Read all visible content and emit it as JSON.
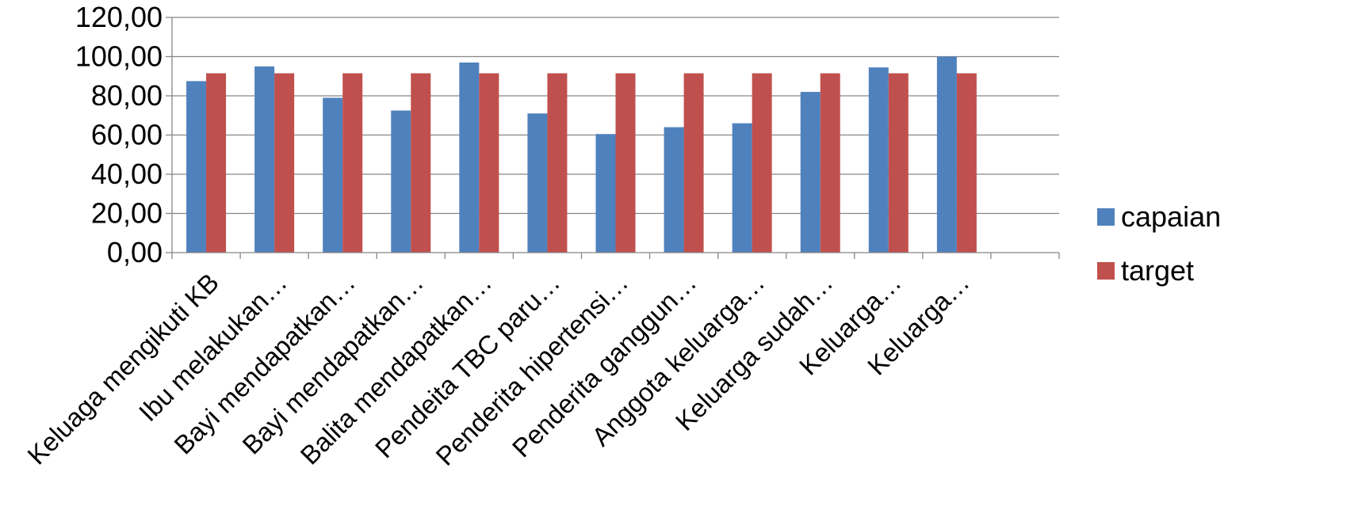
{
  "chart_data": {
    "type": "bar",
    "categories": [
      "Keluaga mengikuti KB",
      "Ibu melakukan…",
      "Bayi mendapatkan…",
      "Bayi mendapatkan…",
      "Balita mendapatkan…",
      "Pendeita TBC paru…",
      "Penderita hipertensi…",
      "Penderita ganggun…",
      "Anggota keluarga…",
      "Keluarga sudah…",
      "Keluarga…",
      "Keluarga…",
      ""
    ],
    "series": [
      {
        "name": "capaian",
        "color": "#4F81BD",
        "values": [
          87.5,
          95.0,
          79.0,
          72.5,
          97.0,
          71.0,
          60.5,
          64.0,
          66.0,
          82.0,
          94.5,
          100.0,
          null
        ]
      },
      {
        "name": "target",
        "color": "#C0504D",
        "values": [
          91.5,
          91.5,
          91.5,
          91.5,
          91.5,
          91.5,
          91.5,
          91.5,
          91.5,
          91.5,
          91.5,
          91.5,
          null
        ]
      }
    ],
    "y_ticks": [
      "0,00",
      "20,00",
      "40,00",
      "60,00",
      "80,00",
      "100,00",
      "120,00"
    ],
    "ylim": [
      0,
      120
    ],
    "y_step": 20,
    "grid": true,
    "legend_position": "right"
  }
}
